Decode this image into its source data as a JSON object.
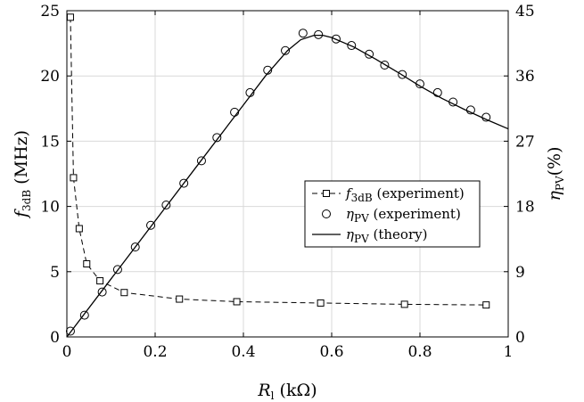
{
  "chart_data": {
    "type": "line",
    "xlabel": "R_l (kΩ)",
    "ylabel_left": "f_3dB (MHz)",
    "ylabel_right": "η_PV (%)",
    "xlim": [
      0,
      1
    ],
    "ylim_left": [
      0,
      25
    ],
    "ylim_right": [
      0,
      45
    ],
    "grid": true,
    "legend_position": "right",
    "x_ticks": [
      "0",
      "0.2",
      "0.4",
      "0.6",
      "0.8",
      "1"
    ],
    "y_ticks_left": [
      "0",
      "5",
      "10",
      "15",
      "20",
      "25"
    ],
    "y_ticks_right": [
      "0",
      "9",
      "18",
      "27",
      "36",
      "45"
    ],
    "series": [
      {
        "name": "f_3dB (experiment)",
        "axis": "left",
        "style": "dashed-square",
        "x": [
          0.008,
          0.015,
          0.028,
          0.045,
          0.075,
          0.13,
          0.255,
          0.385,
          0.575,
          0.765,
          0.95
        ],
        "y": [
          24.5,
          12.2,
          8.3,
          5.6,
          4.3,
          3.4,
          2.9,
          2.7,
          2.6,
          2.5,
          2.45
        ]
      },
      {
        "name": "η_PV (experiment)",
        "axis": "right",
        "style": "circle",
        "x": [
          0.008,
          0.04,
          0.08,
          0.115,
          0.155,
          0.19,
          0.225,
          0.265,
          0.305,
          0.34,
          0.38,
          0.415,
          0.455,
          0.495,
          0.535,
          0.57,
          0.61,
          0.645,
          0.685,
          0.72,
          0.76,
          0.8,
          0.84,
          0.875,
          0.915,
          0.95
        ],
        "y": [
          0.8,
          3.0,
          6.2,
          9.3,
          12.4,
          15.4,
          18.2,
          21.2,
          24.3,
          27.5,
          31.0,
          33.7,
          36.8,
          39.5,
          41.9,
          41.7,
          41.1,
          40.2,
          39.0,
          37.5,
          36.2,
          34.9,
          33.7,
          32.4,
          31.3,
          30.3
        ]
      },
      {
        "name": "η_PV (theory)",
        "axis": "right",
        "style": "solid",
        "x": [
          0.0,
          0.1,
          0.2,
          0.3,
          0.4,
          0.45,
          0.5,
          0.53,
          0.56,
          0.58,
          0.6,
          0.65,
          0.7,
          0.75,
          0.8,
          0.85,
          0.9,
          0.95,
          1.0
        ],
        "y": [
          0.0,
          8.0,
          16.0,
          24.0,
          32.0,
          36.0,
          39.5,
          41.0,
          41.6,
          41.6,
          41.3,
          40.0,
          38.3,
          36.5,
          34.6,
          32.9,
          31.4,
          30.0,
          28.7
        ]
      }
    ],
    "legend": [
      {
        "sym": "f",
        "sub": "3dB",
        "tail": " (experiment)"
      },
      {
        "sym": "η",
        "sub": "PV",
        "tail": " (experiment)"
      },
      {
        "sym": "η",
        "sub": "PV",
        "tail": " (theory)"
      }
    ]
  }
}
